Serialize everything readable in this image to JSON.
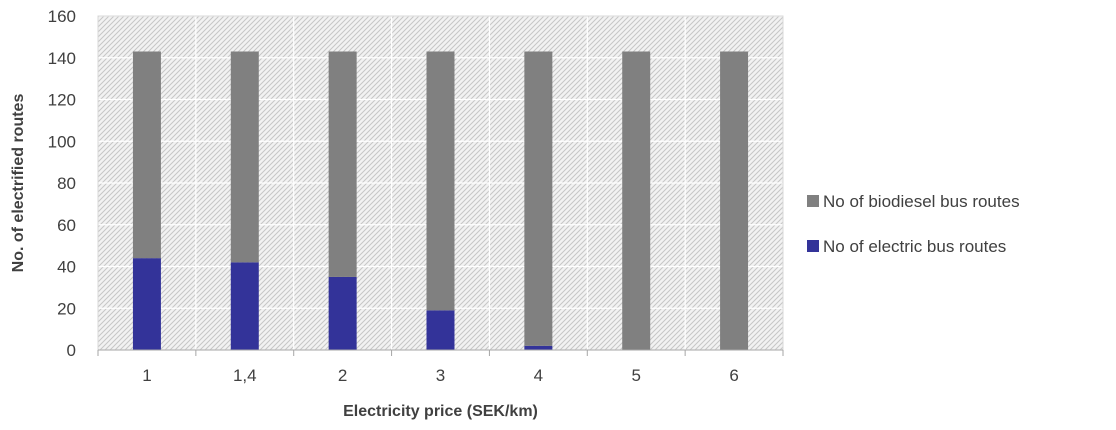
{
  "chart_data": {
    "type": "bar",
    "stacked": true,
    "title": "",
    "xlabel": "Electricity price (SEK/km)",
    "ylabel": "No. of electrified routes",
    "categories": [
      "1",
      "1,4",
      "2",
      "3",
      "4",
      "5",
      "6"
    ],
    "ylim": [
      0,
      160
    ],
    "yticks": [
      0,
      20,
      40,
      60,
      80,
      100,
      120,
      140,
      160
    ],
    "grid": true,
    "legend_position": "right",
    "series": [
      {
        "name": "No of electric bus routes",
        "values": [
          44,
          42,
          35,
          19,
          2,
          0,
          0
        ],
        "color": "#333399"
      },
      {
        "name": "No of biodiesel bus routes",
        "values": [
          99,
          101,
          108,
          124,
          141,
          143,
          143
        ],
        "color": "#808080"
      }
    ],
    "legend_order": [
      "No of biodiesel bus routes",
      "No of electric bus routes"
    ]
  }
}
